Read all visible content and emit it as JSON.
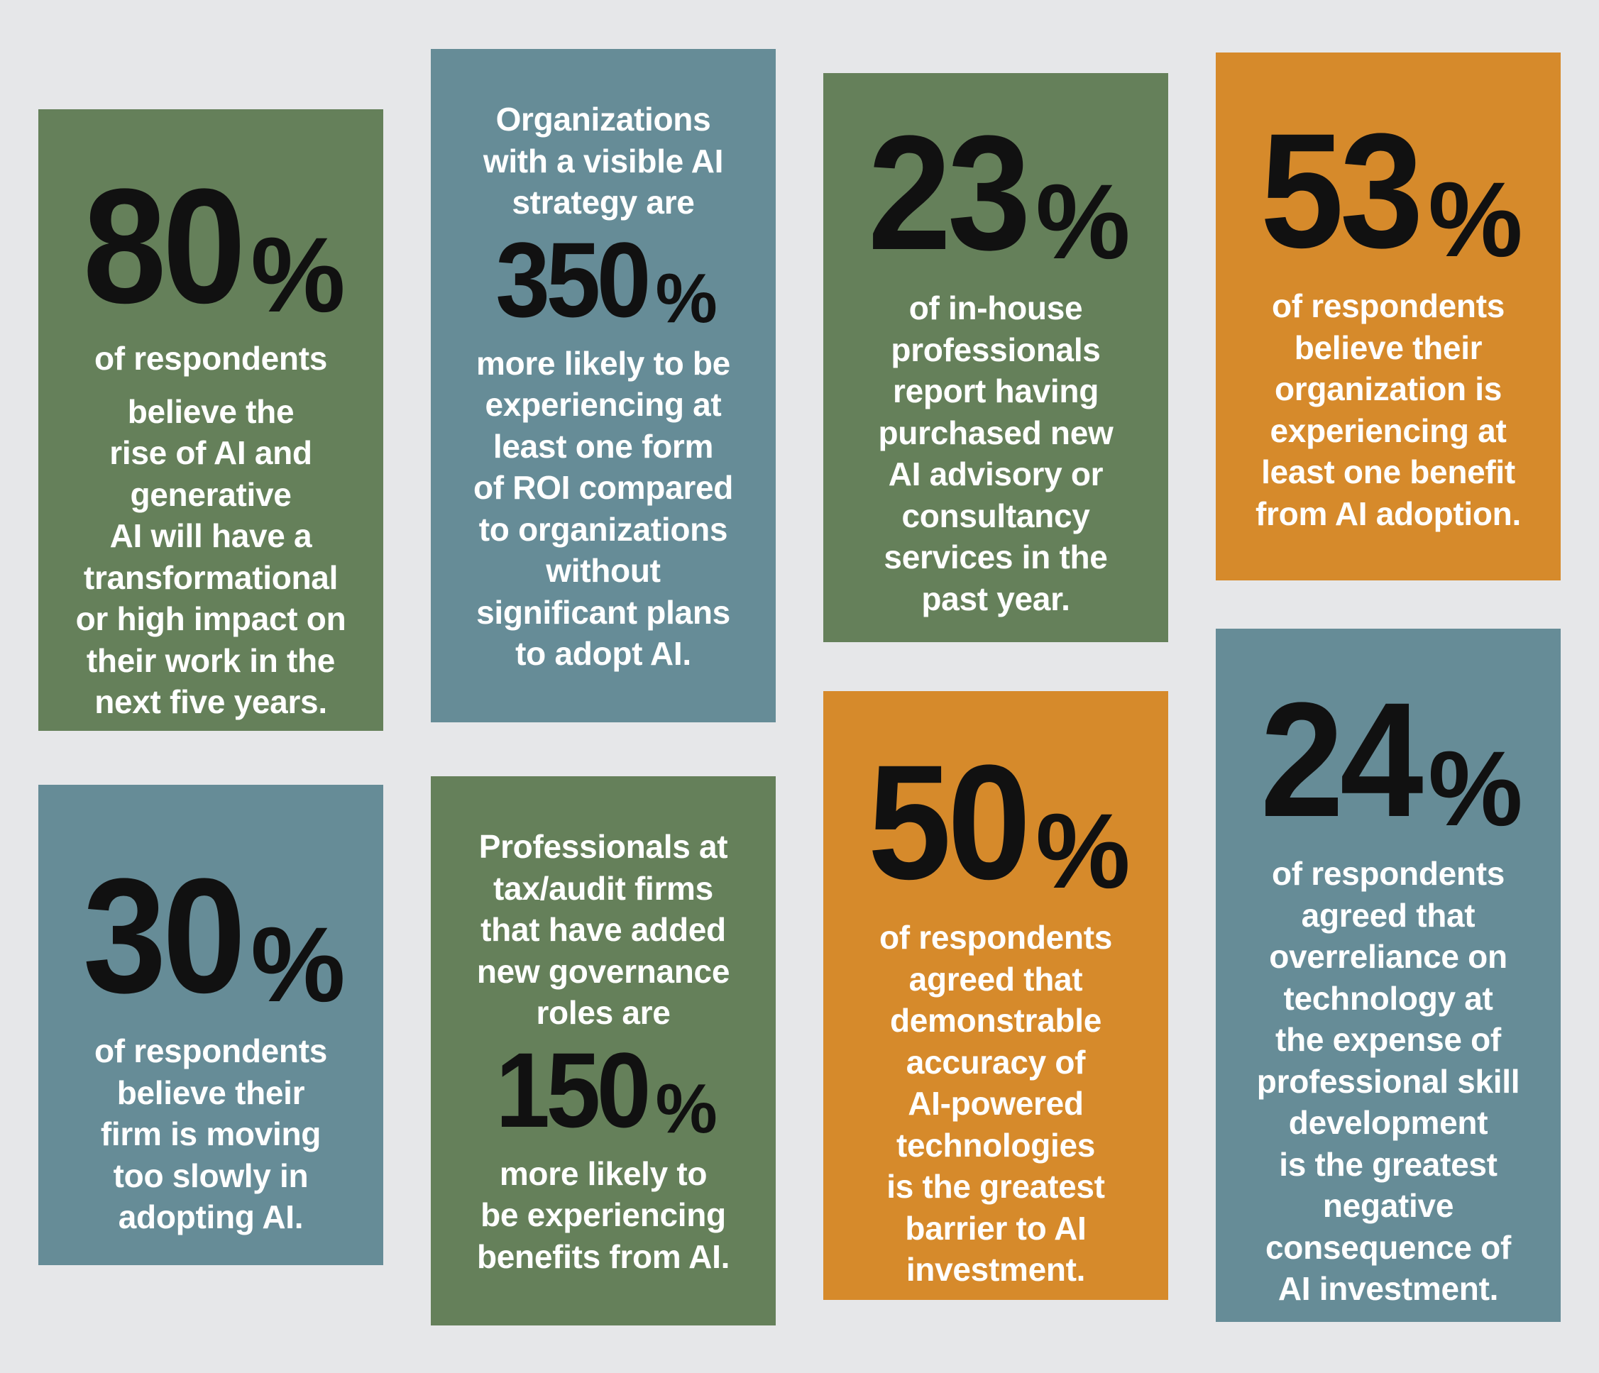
{
  "stats": [
    {
      "number": "80",
      "percent": "%",
      "line1": "of respondents",
      "text": "believe the\nrise of AI and\ngenerative\nAI will have a\ntransformational\nor high impact on\ntheir work in the\nnext five years.",
      "color": "#65805a"
    },
    {
      "intro": "Organizations\nwith a visible AI\nstrategy are",
      "number": "350",
      "percent": "%",
      "text": "more likely to be\nexperiencing at\nleast one form\nof ROI compared\nto organizations\nwithout\nsignificant plans\nto adopt AI.",
      "color": "#668c97"
    },
    {
      "number": "23",
      "percent": "%",
      "text": "of in-house\nprofessionals\nreport having\npurchased new\nAI advisory or\nconsultancy\nservices in the\npast year.",
      "color": "#65805a"
    },
    {
      "number": "53",
      "percent": "%",
      "text": "of respondents\nbelieve their\norganization is\nexperiencing at\nleast one benefit\nfrom AI adoption.",
      "color": "#d68a2b"
    },
    {
      "number": "30",
      "percent": "%",
      "text": "of respondents\nbelieve their\nfirm is moving\ntoo slowly in\nadopting AI.",
      "color": "#668c97"
    },
    {
      "intro": "Professionals at\ntax/audit firms\nthat have added\nnew governance\nroles are",
      "number": "150",
      "percent": "%",
      "text": "more likely to\nbe experiencing\nbenefits from AI.",
      "color": "#65805a"
    },
    {
      "number": "50",
      "percent": "%",
      "text": "of respondents\nagreed that\ndemonstrable\naccuracy of\nAI-powered\ntechnologies\nis the greatest\nbarrier to AI\ninvestment.",
      "color": "#d68a2b"
    },
    {
      "number": "24",
      "percent": "%",
      "text": "of respondents\nagreed that\noverreliance on\ntechnology at\nthe expense of\nprofessional skill\ndevelopment\nis the greatest\nnegative\nconsequence of\nAI investment.",
      "color": "#668c97"
    }
  ]
}
